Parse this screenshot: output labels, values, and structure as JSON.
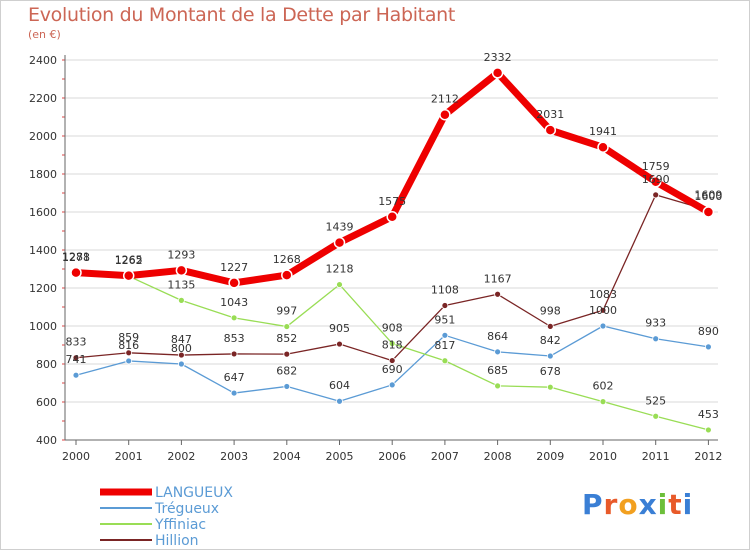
{
  "title": "Evolution du Montant de la Dette par Habitant",
  "unit_label": "(en €)",
  "logo_text": "Proxiti",
  "colors": {
    "LANGUEUX": "#ee0000",
    "Trégueux": "#5b9bd5",
    "Yffiniac": "#99dd55",
    "Hillion": "#7a2525",
    "grid": "#d8d8d8",
    "title": "#cc6655"
  },
  "chart_data": {
    "type": "line",
    "title": "Evolution du Montant de la Dette par Habitant",
    "ylabel": "(en €)",
    "xlabel": "",
    "x": [
      "2000",
      "2001",
      "2002",
      "2003",
      "2004",
      "2005",
      "2006",
      "2007",
      "2008",
      "2009",
      "2010",
      "2011",
      "2012"
    ],
    "ylim": [
      400,
      2400
    ],
    "yticks": [
      400,
      600,
      800,
      1000,
      1200,
      1400,
      1600,
      1800,
      2000,
      2200,
      2400
    ],
    "grid": true,
    "legend_position": "bottom-left",
    "series": [
      {
        "name": "LANGUEUX",
        "values": [
          1281,
          1265,
          1293,
          1227,
          1268,
          1439,
          1575,
          2112,
          2332,
          2031,
          1941,
          1759,
          1600
        ]
      },
      {
        "name": "Trégueux",
        "values": [
          741,
          816,
          800,
          647,
          682,
          604,
          690,
          951,
          864,
          842,
          1000,
          933,
          890
        ]
      },
      {
        "name": "Yffiniac",
        "values": [
          1278,
          1262,
          1135,
          1043,
          997,
          1218,
          908,
          817,
          685,
          678,
          602,
          525,
          453
        ]
      },
      {
        "name": "Hillion",
        "values": [
          833,
          859,
          847,
          853,
          852,
          905,
          818,
          1108,
          1167,
          998,
          1083,
          1690,
          1609
        ]
      }
    ]
  }
}
